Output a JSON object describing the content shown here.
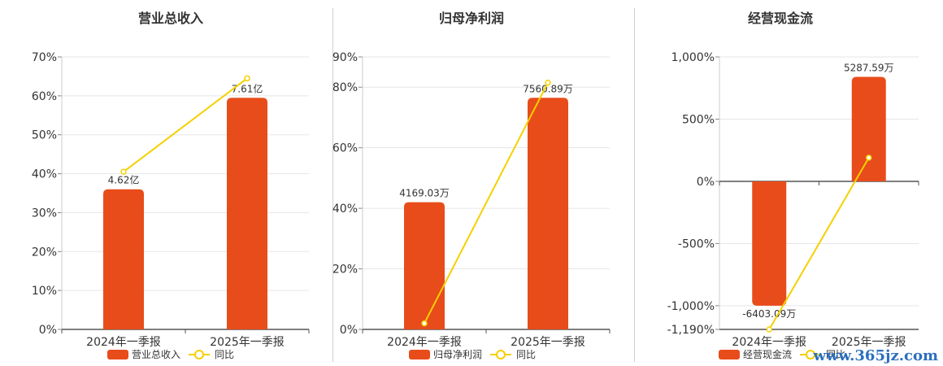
{
  "chart_data": [
    {
      "type": "bar",
      "title": "营业总收入",
      "categories": [
        "2024年一季报",
        "2025年一季报"
      ],
      "bar_labels": [
        "4.62亿",
        "7.61亿"
      ],
      "y_ticks": [
        "0%",
        "10%",
        "20%",
        "30%",
        "40%",
        "50%",
        "60%",
        "70%"
      ],
      "y_tick_values": [
        0,
        10,
        20,
        30,
        40,
        50,
        60,
        70
      ],
      "ylim": [
        0,
        70
      ],
      "series": [
        {
          "name": "营业总收入",
          "kind": "bar",
          "values": [
            36,
            59.5
          ],
          "color": "#e84c1b"
        },
        {
          "name": "同比",
          "kind": "line",
          "values": [
            40.5,
            64.5
          ],
          "color": "#f5d000"
        }
      ],
      "legend": [
        "营业总收入",
        "同比"
      ],
      "legend_position": "bottom",
      "grid": true
    },
    {
      "type": "bar",
      "title": "归母净利润",
      "categories": [
        "2024年一季报",
        "2025年一季报"
      ],
      "bar_labels": [
        "4169.03万",
        "7560.89万"
      ],
      "y_ticks": [
        "0%",
        "20%",
        "40%",
        "60%",
        "80%",
        "90%"
      ],
      "y_tick_values": [
        0,
        20,
        40,
        60,
        80,
        90
      ],
      "ylim": [
        0,
        90
      ],
      "series": [
        {
          "name": "归母净利润",
          "kind": "bar",
          "values": [
            42,
            76.5
          ],
          "color": "#e84c1b"
        },
        {
          "name": "同比",
          "kind": "line",
          "values": [
            2,
            81.5
          ],
          "color": "#f5d000"
        }
      ],
      "legend": [
        "归母净利润",
        "同比"
      ],
      "legend_position": "bottom",
      "grid": true
    },
    {
      "type": "bar",
      "title": "经营现金流",
      "categories": [
        "2024年一季报",
        "2025年一季报"
      ],
      "bar_labels": [
        "-6403.09万",
        "5287.59万"
      ],
      "y_ticks": [
        "-1,190%",
        "-1,000%",
        "-500%",
        "0%",
        "500%",
        "1,000%"
      ],
      "y_tick_values": [
        -1190,
        -1000,
        -500,
        0,
        500,
        1000
      ],
      "ylim": [
        -1190,
        1000
      ],
      "series": [
        {
          "name": "经营现金流",
          "kind": "bar",
          "values": [
            -1000,
            840
          ],
          "color": "#e84c1b"
        },
        {
          "name": "同比",
          "kind": "line",
          "values": [
            -1190,
            190
          ],
          "color": "#f5d000"
        }
      ],
      "legend": [
        "经营现金流",
        "同比"
      ],
      "legend_position": "bottom",
      "grid": true
    }
  ],
  "watermark": "www.365jz.com"
}
